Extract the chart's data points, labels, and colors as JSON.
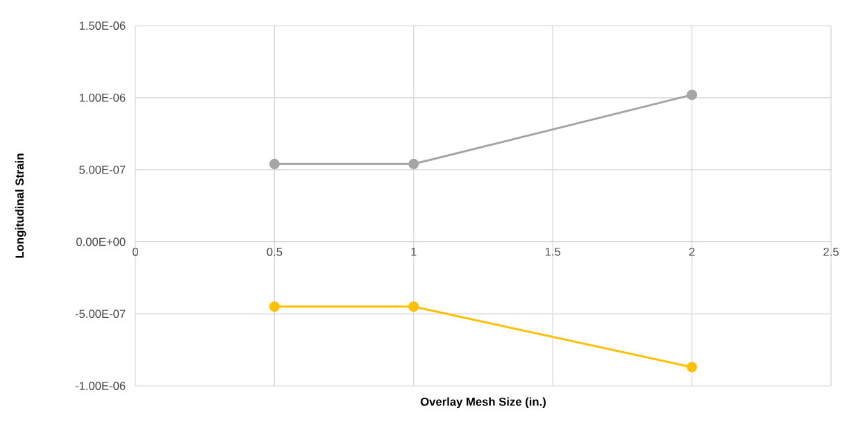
{
  "chart_data": {
    "type": "line",
    "xlabel": "Overlay Mesh Size (in.)",
    "ylabel": "Longitudinal Strain",
    "x": [
      0.5,
      1,
      2
    ],
    "series": [
      {
        "color": "#a5a5a5",
        "values": [
          5.4e-07,
          5.4e-07,
          1.02e-06
        ]
      },
      {
        "color": "#ffc000",
        "values": [
          -4.5e-07,
          -4.5e-07,
          -8.7e-07
        ]
      }
    ],
    "xlim": [
      0,
      2.5
    ],
    "xticks": [
      0,
      0.5,
      1,
      1.5,
      2,
      2.5
    ],
    "ylim": [
      -1e-06,
      1.5e-06
    ],
    "yticks": [
      {
        "value": -1e-06,
        "label": "-1.00E-06"
      },
      {
        "value": -5e-07,
        "label": "-5.00E-07"
      },
      {
        "value": 0,
        "label": "0.00E+00"
      },
      {
        "value": 5e-07,
        "label": "5.00E-07"
      },
      {
        "value": 1e-06,
        "label": "1.00E-06"
      },
      {
        "value": 1.5e-06,
        "label": "1.50E-06"
      }
    ],
    "grid": true,
    "marker": "circle",
    "line_style": "solid"
  }
}
